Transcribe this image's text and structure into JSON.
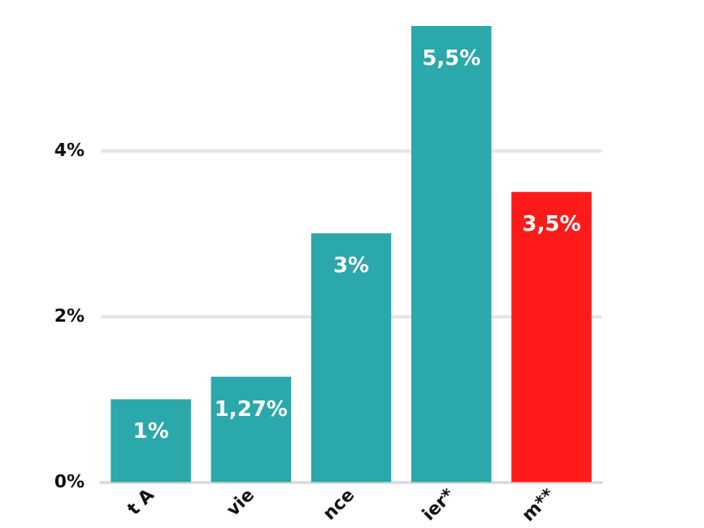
{
  "chart_data": {
    "type": "bar",
    "categories": [
      "t A",
      "vie",
      "nce",
      "ier*",
      "m**"
    ],
    "values": [
      1,
      1.27,
      3,
      5.5,
      3.5
    ],
    "colors": [
      "#2aa8ab",
      "#2aa8ab",
      "#2aa8ab",
      "#2aa8ab",
      "#ff1a1a"
    ],
    "value_labels": [
      "1%",
      "1,27%",
      "3%",
      "5,5%",
      "3,5%"
    ],
    "ylim": [
      0,
      5.5
    ],
    "yticks": [
      {
        "value": 0,
        "label": "0%"
      },
      {
        "value": 2,
        "label": "2%"
      },
      {
        "value": 4,
        "label": "4%"
      }
    ],
    "grid": "y"
  }
}
